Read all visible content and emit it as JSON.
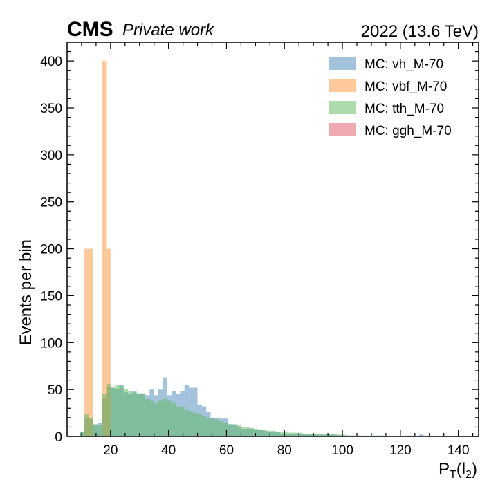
{
  "header": {
    "experiment": "CMS",
    "status": "Private work",
    "lumi": "2022 (13.6 TeV)"
  },
  "chart_data": {
    "type": "bar",
    "subtype": "overlaid histogram",
    "xlabel_main": "P",
    "xlabel_sub": "T",
    "xlabel_arg": "(l",
    "xlabel_arg_sub": "2",
    "xlabel_close": ")",
    "ylabel": "Events per bin",
    "xlim": [
      5,
      147
    ],
    "ylim": [
      0,
      420
    ],
    "xticks": [
      20,
      40,
      60,
      80,
      100,
      120,
      140
    ],
    "yticks": [
      0,
      50,
      100,
      150,
      200,
      250,
      300,
      350,
      400
    ],
    "legend_position": "top-right",
    "bin_edges_start": 8,
    "bin_width": 1.5,
    "series": [
      {
        "name": "MC: vh_M-70",
        "color": "#5790c0",
        "opacity": 0.55,
        "values": [
          0,
          5,
          20,
          18,
          13,
          14,
          40,
          53,
          52,
          50,
          55,
          47,
          45,
          48,
          45,
          45,
          44,
          50,
          44,
          50,
          63,
          44,
          48,
          45,
          48,
          55,
          52,
          52,
          34,
          32,
          26,
          20,
          20,
          19,
          19,
          13,
          13,
          10,
          8,
          8,
          8,
          7,
          7,
          6,
          5,
          5,
          5,
          3,
          3,
          3,
          3,
          3,
          3,
          2,
          3,
          2,
          2,
          2,
          2,
          2,
          1,
          1,
          1,
          0,
          0,
          0,
          0,
          0,
          0,
          1,
          0,
          0,
          0,
          0,
          0,
          0,
          1,
          0,
          0,
          2,
          0,
          0,
          0,
          0,
          0,
          0,
          0,
          0,
          0,
          0,
          0,
          0,
          0,
          0,
          0
        ]
      },
      {
        "name": "MC: vbf_M-70",
        "color": "#ff9d4a",
        "opacity": 0.55,
        "values": [
          0,
          0,
          200,
          200,
          0,
          0,
          400,
          200,
          0,
          0,
          0,
          0,
          0,
          0,
          0,
          0,
          0,
          0,
          0,
          0,
          0,
          0,
          0,
          0,
          0,
          0,
          0,
          0,
          0,
          0,
          0,
          0,
          0,
          0,
          0,
          0,
          0,
          0,
          0,
          0,
          0,
          0,
          0,
          0,
          0,
          0,
          0,
          0,
          0,
          0,
          0,
          0,
          0,
          0,
          0,
          0,
          0,
          0,
          0,
          0,
          0,
          0,
          0,
          0,
          0,
          0,
          0,
          0,
          0,
          0,
          0,
          0,
          0,
          0,
          0,
          0,
          0,
          0,
          0,
          0,
          0,
          0,
          0,
          0,
          0,
          0,
          0,
          0,
          0,
          0,
          0,
          0,
          0,
          0,
          0
        ]
      },
      {
        "name": "MC: tth_M-70",
        "color": "#5cb85c",
        "opacity": 0.5,
        "values": [
          0,
          5,
          24,
          20,
          12,
          12,
          45,
          56,
          52,
          55,
          54,
          50,
          48,
          47,
          46,
          46,
          40,
          38,
          36,
          38,
          40,
          38,
          36,
          32,
          32,
          28,
          27,
          25,
          24,
          22,
          19,
          19,
          18,
          16,
          14,
          13,
          12,
          12,
          10,
          10,
          9,
          8,
          7,
          7,
          6,
          6,
          5,
          5,
          5,
          4,
          4,
          4,
          3,
          3,
          3,
          3,
          3,
          2,
          2,
          2,
          2,
          2,
          1,
          1,
          1,
          1,
          1,
          0,
          1,
          0,
          1,
          0,
          0,
          0,
          0,
          0,
          0,
          0,
          0,
          0,
          0,
          0,
          0,
          0,
          0,
          0,
          0,
          0,
          0,
          0,
          0,
          0,
          0,
          0,
          0
        ]
      },
      {
        "name": "MC: ggh_M-70",
        "color": "#d9434f",
        "opacity": 0.45,
        "values": [
          0,
          0,
          0,
          0,
          0,
          0,
          0,
          0,
          0,
          0,
          0,
          0,
          0,
          0,
          0,
          0,
          0,
          0,
          0,
          0,
          0,
          0,
          0,
          0,
          0,
          0,
          0,
          0,
          0,
          0,
          0,
          0,
          0,
          0,
          0,
          0,
          0,
          0,
          0,
          0,
          0,
          0,
          0,
          0,
          0,
          0,
          0,
          0,
          0,
          0,
          0,
          0,
          0,
          0,
          0,
          0,
          0,
          0,
          0,
          0,
          0,
          0,
          0,
          0,
          0,
          0,
          0,
          0,
          0,
          0,
          0,
          0,
          0,
          0,
          0,
          0,
          0,
          0,
          0,
          0,
          0,
          0,
          0,
          0,
          0,
          0,
          0,
          0,
          0,
          0,
          0,
          0,
          0,
          0,
          0
        ]
      }
    ]
  }
}
